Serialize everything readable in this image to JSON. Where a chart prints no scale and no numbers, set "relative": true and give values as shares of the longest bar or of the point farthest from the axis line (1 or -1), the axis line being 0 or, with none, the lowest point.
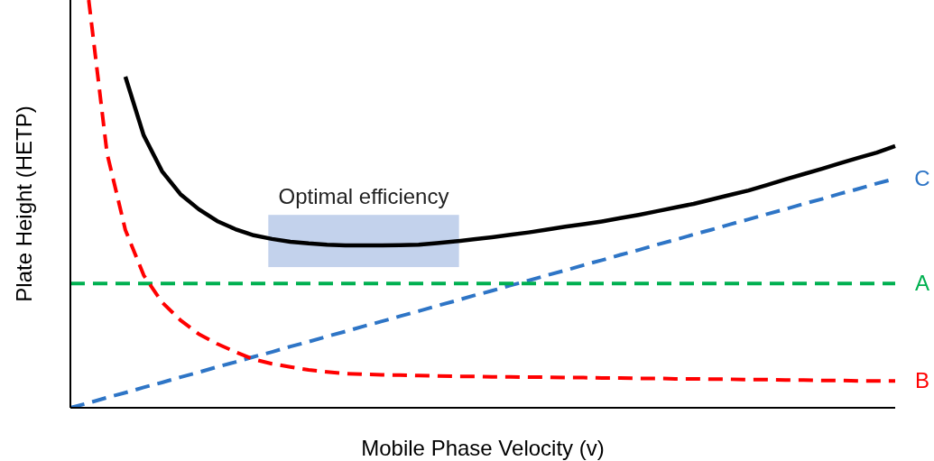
{
  "chart_data": {
    "type": "line",
    "relative": true,
    "xlabel": "Mobile Phase Velocity (v)",
    "ylabel": "Plate Height (HETP)",
    "legend": false,
    "categories": [
      null,
      null,
      null,
      null,
      null,
      null,
      null,
      null,
      null,
      null,
      null,
      null,
      null,
      null,
      null,
      null,
      null,
      null,
      null,
      null,
      null,
      null,
      null,
      null,
      null,
      null,
      null,
      null,
      null,
      null,
      null,
      null,
      null,
      null,
      null,
      null,
      null,
      null,
      null,
      null,
      null,
      null,
      null,
      null,
      null,
      null
    ],
    "annotations": [
      "Optimal efficiency"
    ],
    "series": [
      {
        "color": "#000000",
        "line_style": "solid",
        "values": [
          null,
          null,
          null,
          0.812,
          0.668,
          0.58,
          0.524,
          0.487,
          0.458,
          0.438,
          0.423,
          0.414,
          0.407,
          0.403,
          0.4,
          0.398,
          0.398,
          0.398,
          0.399,
          0.4,
          0.404,
          0.408,
          0.413,
          0.418,
          0.424,
          0.43,
          0.437,
          0.444,
          0.45,
          0.457,
          0.465,
          0.473,
          0.482,
          0.491,
          0.5,
          0.511,
          0.522,
          0.533,
          0.546,
          0.56,
          0.573,
          0.586,
          0.6,
          0.613,
          0.626,
          0.642
        ]
      },
      {
        "name": "C",
        "color": "#2e75c6",
        "line_style": "dashed",
        "values": [
          0,
          0.012,
          0.025,
          0.037,
          0.05,
          0.062,
          0.075,
          0.087,
          0.1,
          0.112,
          0.125,
          0.137,
          0.15,
          0.162,
          0.175,
          0.187,
          0.2,
          0.212,
          0.225,
          0.237,
          0.25,
          0.262,
          0.275,
          0.287,
          0.3,
          0.312,
          0.325,
          0.337,
          0.35,
          0.362,
          0.375,
          0.387,
          0.4,
          0.412,
          0.425,
          0.437,
          0.45,
          0.462,
          0.475,
          0.487,
          0.5,
          0.512,
          0.525,
          0.537,
          0.55,
          0.562
        ]
      },
      {
        "name": "A",
        "color": "#00b050",
        "line_style": "dashed",
        "values": [
          0.305,
          0.305,
          0.305,
          0.305,
          0.305,
          0.305,
          0.305,
          0.305,
          0.305,
          0.305,
          0.305,
          0.305,
          0.305,
          0.305,
          0.305,
          0.305,
          0.305,
          0.305,
          0.305,
          0.305,
          0.305,
          0.305,
          0.305,
          0.305,
          0.305,
          0.305,
          0.305,
          0.305,
          0.305,
          0.305,
          0.305,
          0.305,
          0.305,
          0.305,
          0.305,
          0.305,
          0.305,
          0.305,
          0.305,
          0.305,
          0.305,
          0.305,
          0.305,
          0.305,
          0.305,
          0.305
        ]
      },
      {
        "name": "B",
        "color": "#ff0000",
        "line_style": "dashed",
        "values": [
          null,
          1,
          0.624,
          0.436,
          0.325,
          0.259,
          0.215,
          0.181,
          0.157,
          0.137,
          0.119,
          0.108,
          0.1,
          0.093,
          0.088,
          0.084,
          0.082,
          0.081,
          0.08,
          0.079,
          0.078,
          0.077,
          0.077,
          0.076,
          0.076,
          0.075,
          0.075,
          0.074,
          0.074,
          0.073,
          0.073,
          0.072,
          0.072,
          0.071,
          0.071,
          0.07,
          0.07,
          0.069,
          0.069,
          0.068,
          0.068,
          0.067,
          0.067,
          0.066,
          0.066,
          0.066
        ]
      }
    ]
  }
}
